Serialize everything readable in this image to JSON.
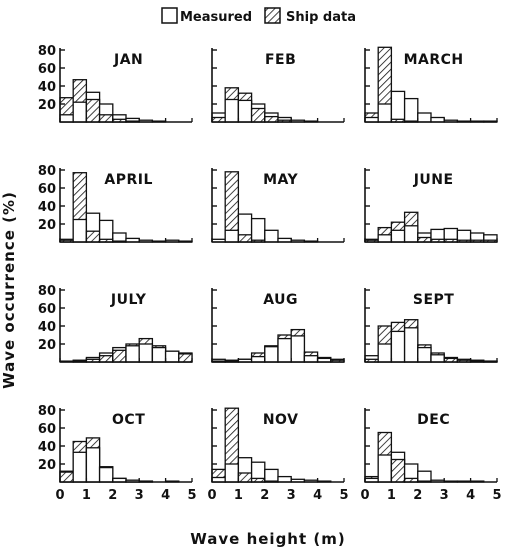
{
  "legend": {
    "measured_label": "Measured",
    "ship_label": "Ship data"
  },
  "axis": {
    "ylabel": "Wave occurrence (%)",
    "xlabel": "Wave height (m)"
  },
  "chart_data": {
    "type": "bar",
    "bin_width_m": 0.5,
    "xlim": [
      0,
      5
    ],
    "ylim": [
      0,
      80
    ],
    "x_ticks": [
      "0",
      "1",
      "2",
      "3",
      "4",
      "5"
    ],
    "y_ticks": [
      "20",
      "40",
      "60",
      "80"
    ],
    "series_names": [
      "Measured",
      "Ship data"
    ],
    "panels": [
      {
        "month": "JAN",
        "bins": [
          0,
          0.5,
          1,
          1.5,
          2,
          2.5,
          3,
          3.5,
          4,
          4.5
        ],
        "measured": [
          8,
          22,
          33,
          20,
          8,
          4,
          2,
          1,
          0,
          0
        ],
        "ship": [
          27,
          47,
          25,
          8,
          3,
          1,
          0,
          0,
          0,
          0
        ]
      },
      {
        "month": "FEB",
        "bins": [
          0,
          0.5,
          1,
          1.5,
          2,
          2.5,
          3,
          3.5,
          4,
          4.5
        ],
        "measured": [
          10,
          25,
          24,
          20,
          10,
          5,
          2,
          1,
          0,
          0
        ],
        "ship": [
          5,
          38,
          32,
          15,
          6,
          2,
          0,
          0,
          0,
          0
        ]
      },
      {
        "month": "MARCH",
        "bins": [
          0,
          0.5,
          1,
          1.5,
          2,
          2.5,
          3,
          3.5,
          4,
          4.5
        ],
        "measured": [
          5,
          20,
          34,
          26,
          10,
          5,
          2,
          1,
          1,
          1
        ],
        "ship": [
          10,
          83,
          3,
          1,
          0,
          0,
          0,
          0,
          0,
          0
        ]
      },
      {
        "month": "APRIL",
        "bins": [
          0,
          0.5,
          1,
          1.5,
          2,
          2.5,
          3,
          3.5,
          4,
          4.5
        ],
        "measured": [
          3,
          25,
          32,
          24,
          10,
          4,
          2,
          1,
          2,
          1
        ],
        "ship": [
          2,
          77,
          12,
          3,
          1,
          0,
          0,
          0,
          0,
          0
        ]
      },
      {
        "month": "MAY",
        "bins": [
          0,
          0.5,
          1,
          1.5,
          2,
          2.5,
          3,
          3.5,
          4,
          4.5
        ],
        "measured": [
          3,
          13,
          31,
          26,
          13,
          4,
          2,
          1,
          0,
          0
        ],
        "ship": [
          0,
          78,
          8,
          2,
          0,
          0,
          0,
          0,
          0,
          0
        ]
      },
      {
        "month": "JUNE",
        "bins": [
          0,
          0.5,
          1,
          1.5,
          2,
          2.5,
          3,
          3.5,
          4,
          4.5
        ],
        "measured": [
          3,
          8,
          13,
          18,
          10,
          14,
          15,
          13,
          10,
          8
        ],
        "ship": [
          2,
          16,
          22,
          33,
          5,
          3,
          3,
          2,
          2,
          2
        ]
      },
      {
        "month": "JULY",
        "bins": [
          0,
          0.5,
          1,
          1.5,
          2,
          2.5,
          3,
          3.5,
          4,
          4.5
        ],
        "measured": [
          1,
          2,
          5,
          10,
          16,
          18,
          20,
          16,
          12,
          10
        ],
        "ship": [
          0,
          1,
          3,
          7,
          13,
          20,
          26,
          18,
          12,
          9
        ]
      },
      {
        "month": "AUG",
        "bins": [
          0,
          0.5,
          1,
          1.5,
          2,
          2.5,
          3,
          3.5,
          4,
          4.5
        ],
        "measured": [
          3,
          2,
          3,
          6,
          17,
          26,
          29,
          7,
          4,
          3
        ],
        "ship": [
          1,
          1,
          3,
          10,
          18,
          30,
          36,
          11,
          5,
          2
        ]
      },
      {
        "month": "SEPT",
        "bins": [
          0,
          0.5,
          1,
          1.5,
          2,
          2.5,
          3,
          3.5,
          4,
          4.5
        ],
        "measured": [
          7,
          20,
          34,
          38,
          16,
          8,
          5,
          3,
          2,
          1
        ],
        "ship": [
          3,
          40,
          44,
          47,
          19,
          10,
          4,
          2,
          1,
          1
        ]
      },
      {
        "month": "OCT",
        "bins": [
          0,
          0.5,
          1,
          1.5,
          2,
          2.5,
          3,
          3.5,
          4,
          4.5
        ],
        "measured": [
          12,
          33,
          38,
          16,
          4,
          2,
          1,
          0,
          1,
          0
        ],
        "ship": [
          11,
          45,
          49,
          17,
          4,
          2,
          1,
          0,
          0,
          0
        ]
      },
      {
        "month": "NOV",
        "bins": [
          0,
          0.5,
          1,
          1.5,
          2,
          2.5,
          3,
          3.5,
          4,
          4.5
        ],
        "measured": [
          5,
          20,
          27,
          22,
          14,
          6,
          3,
          2,
          1,
          0
        ],
        "ship": [
          14,
          82,
          10,
          4,
          1,
          0,
          0,
          0,
          0,
          0
        ]
      },
      {
        "month": "DEC",
        "bins": [
          0,
          0.5,
          1,
          1.5,
          2,
          2.5,
          3,
          3.5,
          4,
          4.5
        ],
        "measured": [
          4,
          30,
          33,
          20,
          12,
          2,
          1,
          1,
          1,
          0
        ],
        "ship": [
          6,
          55,
          25,
          4,
          1,
          0,
          0,
          0,
          0,
          0
        ]
      }
    ]
  }
}
